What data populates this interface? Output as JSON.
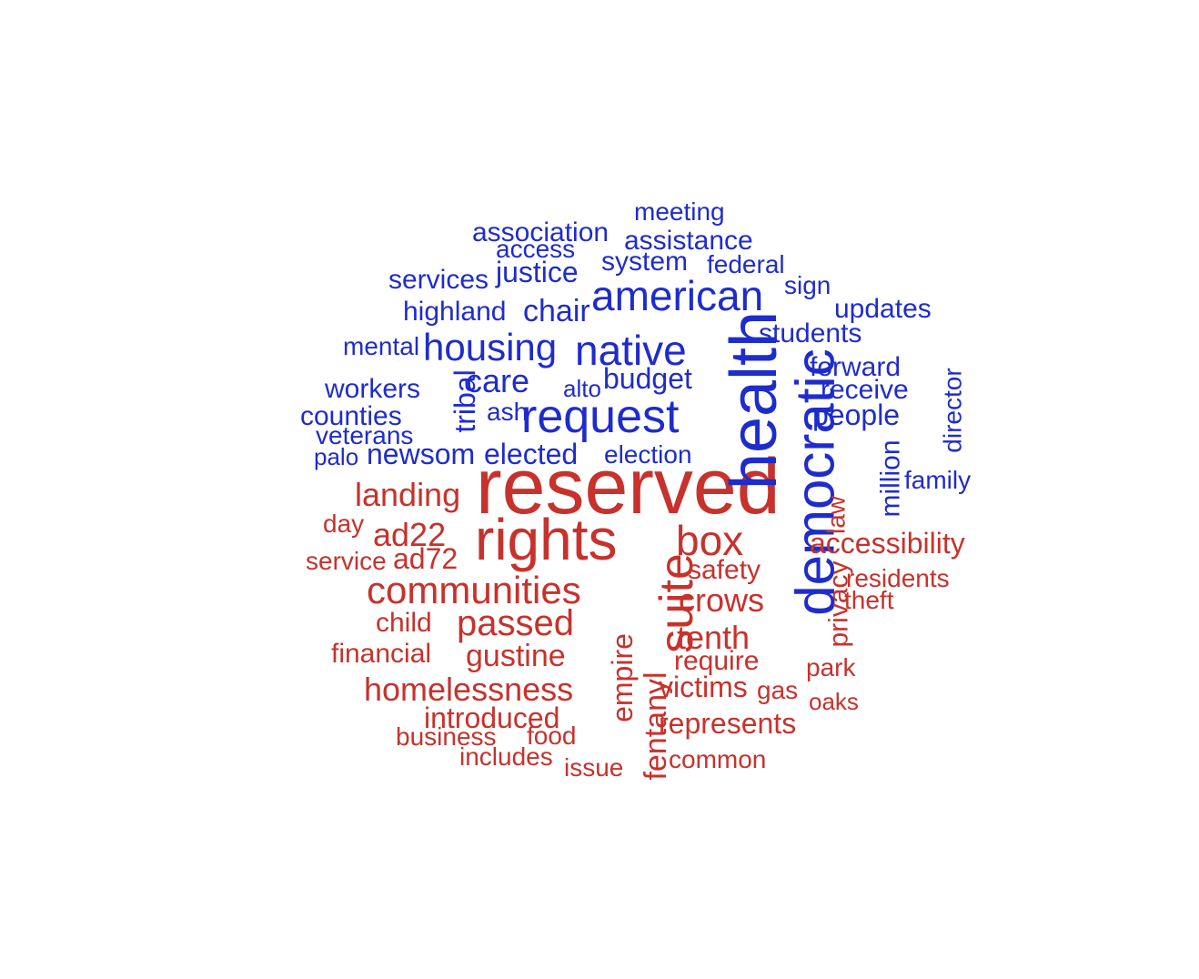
{
  "colors": {
    "blue": "#1f2ccc",
    "red": "#c7322c",
    "background": "#ffffff"
  },
  "words": [
    {
      "text": "reserved",
      "group": "red"
    },
    {
      "text": "rights",
      "group": "red"
    },
    {
      "text": "health",
      "group": "blue"
    },
    {
      "text": "democratic",
      "group": "blue"
    },
    {
      "text": "request",
      "group": "blue"
    },
    {
      "text": "native",
      "group": "blue"
    },
    {
      "text": "american",
      "group": "blue"
    },
    {
      "text": "housing",
      "group": "blue"
    },
    {
      "text": "suite",
      "group": "red"
    },
    {
      "text": "communities",
      "group": "red"
    },
    {
      "text": "box",
      "group": "red"
    },
    {
      "text": "passed",
      "group": "red"
    },
    {
      "text": "landing",
      "group": "red"
    },
    {
      "text": "ad22",
      "group": "red"
    },
    {
      "text": "crows",
      "group": "red"
    },
    {
      "text": "tenth",
      "group": "red"
    },
    {
      "text": "homelessness",
      "group": "red"
    },
    {
      "text": "gustine",
      "group": "red"
    },
    {
      "text": "empire",
      "group": "red"
    },
    {
      "text": "fentanyl",
      "group": "red"
    },
    {
      "text": "introduced",
      "group": "red"
    },
    {
      "text": "represents",
      "group": "red"
    },
    {
      "text": "care",
      "group": "blue"
    },
    {
      "text": "chair",
      "group": "blue"
    },
    {
      "text": "budget",
      "group": "blue"
    },
    {
      "text": "justice",
      "group": "blue"
    },
    {
      "text": "system",
      "group": "blue"
    },
    {
      "text": "assistance",
      "group": "blue"
    },
    {
      "text": "association",
      "group": "blue"
    },
    {
      "text": "access",
      "group": "blue"
    },
    {
      "text": "meeting",
      "group": "blue"
    },
    {
      "text": "federal",
      "group": "blue"
    },
    {
      "text": "sign",
      "group": "blue"
    },
    {
      "text": "services",
      "group": "blue"
    },
    {
      "text": "highland",
      "group": "blue"
    },
    {
      "text": "mental",
      "group": "blue"
    },
    {
      "text": "workers",
      "group": "blue"
    },
    {
      "text": "counties",
      "group": "blue"
    },
    {
      "text": "veterans",
      "group": "blue"
    },
    {
      "text": "palo",
      "group": "blue"
    },
    {
      "text": "newsom",
      "group": "blue"
    },
    {
      "text": "elected",
      "group": "blue"
    },
    {
      "text": "election",
      "group": "blue"
    },
    {
      "text": "ash",
      "group": "blue"
    },
    {
      "text": "alto",
      "group": "blue"
    },
    {
      "text": "tribal",
      "group": "blue"
    },
    {
      "text": "students",
      "group": "blue"
    },
    {
      "text": "updates",
      "group": "blue"
    },
    {
      "text": "forward",
      "group": "blue"
    },
    {
      "text": "receive",
      "group": "blue"
    },
    {
      "text": "people",
      "group": "blue"
    },
    {
      "text": "director",
      "group": "blue"
    },
    {
      "text": "million",
      "group": "blue"
    },
    {
      "text": "family",
      "group": "blue"
    },
    {
      "text": "law",
      "group": "red"
    },
    {
      "text": "accessibility",
      "group": "red"
    },
    {
      "text": "privacy",
      "group": "red"
    },
    {
      "text": "residents",
      "group": "red"
    },
    {
      "text": "theft",
      "group": "red"
    },
    {
      "text": "safety",
      "group": "red"
    },
    {
      "text": "day",
      "group": "red"
    },
    {
      "text": "service",
      "group": "red"
    },
    {
      "text": "ad72",
      "group": "red"
    },
    {
      "text": "child",
      "group": "red"
    },
    {
      "text": "financial",
      "group": "red"
    },
    {
      "text": "require",
      "group": "red"
    },
    {
      "text": "victims",
      "group": "red"
    },
    {
      "text": "gas",
      "group": "red"
    },
    {
      "text": "park",
      "group": "red"
    },
    {
      "text": "oaks",
      "group": "red"
    },
    {
      "text": "business",
      "group": "red"
    },
    {
      "text": "food",
      "group": "red"
    },
    {
      "text": "includes",
      "group": "red"
    },
    {
      "text": "issue",
      "group": "red"
    },
    {
      "text": "common",
      "group": "red"
    }
  ]
}
